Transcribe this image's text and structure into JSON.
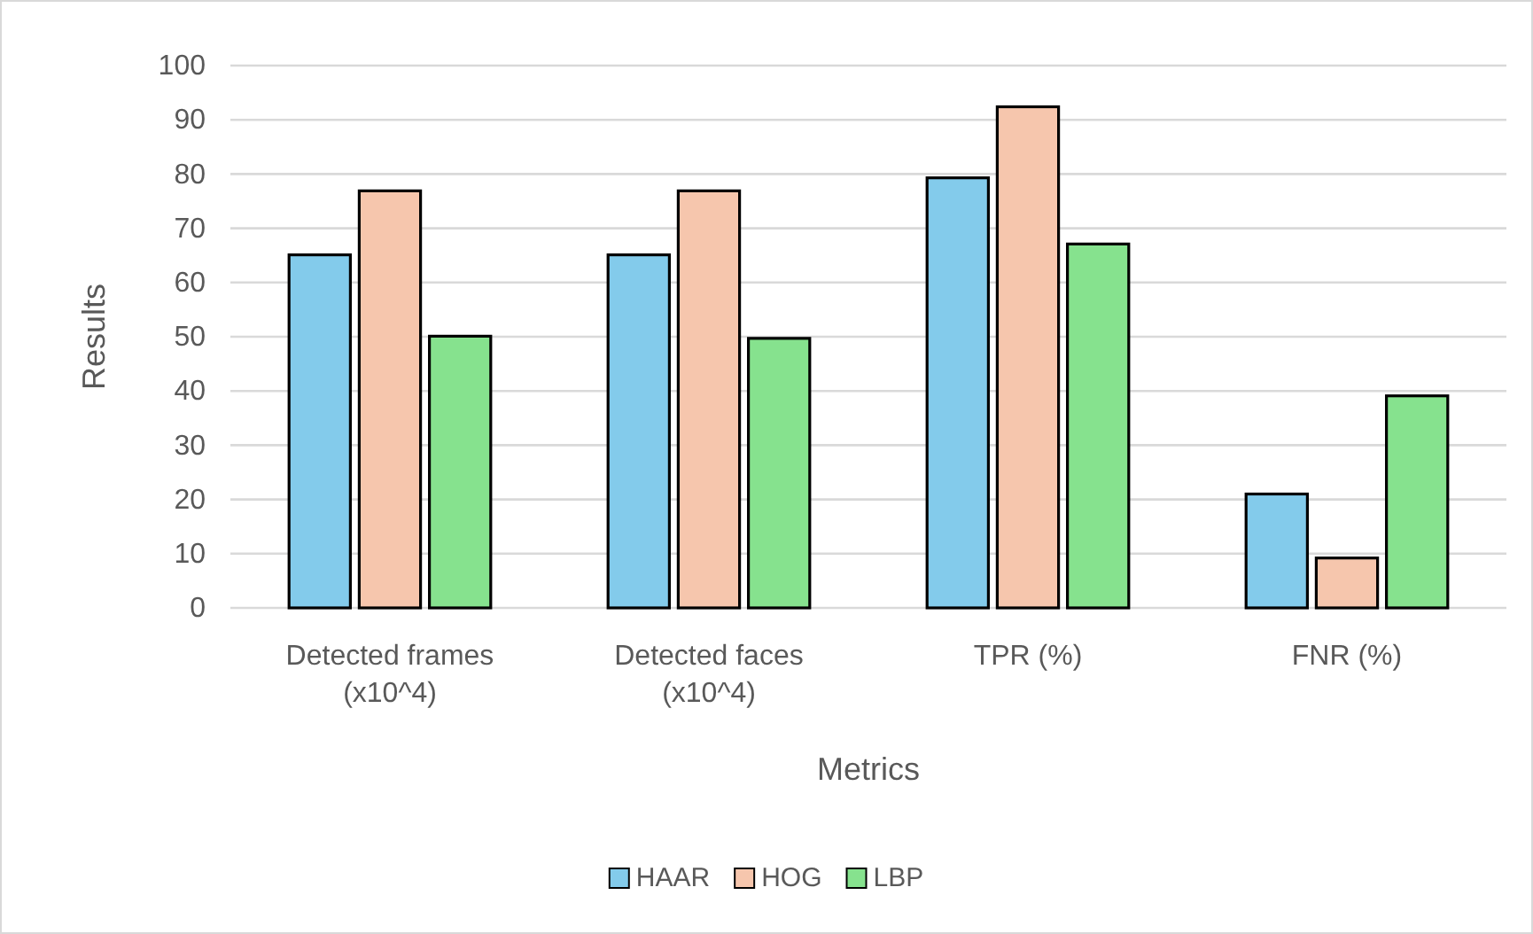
{
  "chart_data": {
    "type": "bar",
    "xlabel": "Metrics",
    "ylabel": "Results",
    "categories": [
      "Detected frames (x10^4)",
      "Detected faces (x10^4)",
      "TPR (%)",
      "FNR (%)"
    ],
    "series": [
      {
        "name": "HAAR",
        "color": "#83cbeb",
        "values": [
          65.1,
          65.1,
          79.3,
          21.0
        ]
      },
      {
        "name": "HOG",
        "color": "#f6c6ad",
        "values": [
          76.9,
          76.9,
          92.4,
          9.2
        ]
      },
      {
        "name": "LBP",
        "color": "#86e28e",
        "values": [
          50.1,
          49.7,
          67.1,
          39.1
        ]
      }
    ],
    "ylim": [
      0,
      100
    ],
    "yticks": [
      0,
      10,
      20,
      30,
      40,
      50,
      60,
      70,
      80,
      90,
      100
    ],
    "grid": "y",
    "legend": "bottom"
  }
}
